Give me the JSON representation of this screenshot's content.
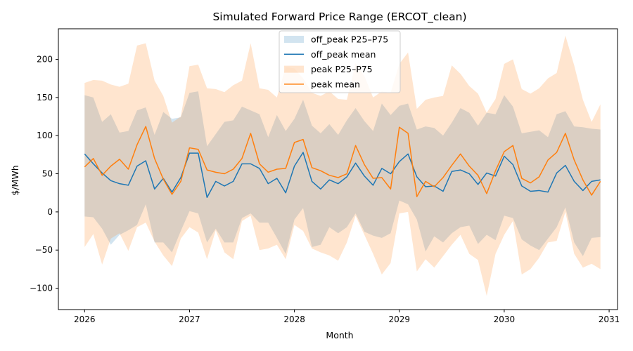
{
  "chart_data": {
    "type": "line",
    "title": "Simulated Forward Price Range (ERCOT_clean)",
    "xlabel": "Month",
    "ylabel": "$/MWh",
    "xlim": [
      2025.75,
      2031.08
    ],
    "ylim": [
      -128,
      240
    ],
    "x_ticks": [
      2026,
      2027,
      2028,
      2029,
      2030,
      2031
    ],
    "y_ticks": [
      -100,
      -50,
      0,
      50,
      100,
      150,
      200
    ],
    "grid": false,
    "legend_position": "top-center",
    "colors": {
      "off_peak_band": "#1f77b4",
      "off_peak_line": "#1f77b4",
      "peak_band": "#ff7f0e",
      "peak_line": "#ff7f0e"
    },
    "x": [
      2026.0,
      2026.083,
      2026.167,
      2026.25,
      2026.333,
      2026.417,
      2026.5,
      2026.583,
      2026.667,
      2026.75,
      2026.833,
      2026.917,
      2027.0,
      2027.083,
      2027.167,
      2027.25,
      2027.333,
      2027.417,
      2027.5,
      2027.583,
      2027.667,
      2027.75,
      2027.833,
      2027.917,
      2028.0,
      2028.083,
      2028.167,
      2028.25,
      2028.333,
      2028.417,
      2028.5,
      2028.583,
      2028.667,
      2028.75,
      2028.833,
      2028.917,
      2029.0,
      2029.083,
      2029.167,
      2029.25,
      2029.333,
      2029.417,
      2029.5,
      2029.583,
      2029.667,
      2029.75,
      2029.833,
      2029.917,
      2030.0,
      2030.083,
      2030.167,
      2030.25,
      2030.333,
      2030.417,
      2030.5,
      2030.583,
      2030.667,
      2030.75,
      2030.833,
      2030.917
    ],
    "series": [
      {
        "name": "off_peak P25–P75",
        "kind": "band",
        "low": [
          -6,
          -7,
          -22,
          -43,
          -30,
          -24,
          -17,
          10,
          -40,
          -40,
          -53,
          -25,
          1,
          -2,
          -40,
          -22,
          -40,
          -40,
          -8,
          -2,
          -14,
          -14,
          -34,
          -55,
          -10,
          5,
          -46,
          -43,
          -20,
          -28,
          -20,
          -2,
          -26,
          -31,
          -34,
          -28,
          15,
          10,
          -10,
          -52,
          -32,
          -40,
          -28,
          -20,
          -18,
          -42,
          -30,
          -37,
          -5,
          -8,
          -36,
          -44,
          -50,
          -35,
          -20,
          6,
          -40,
          -58,
          -34,
          -33
        ],
        "high": [
          153,
          150,
          118,
          128,
          104,
          106,
          133,
          137,
          101,
          131,
          122,
          124,
          156,
          158,
          86,
          102,
          118,
          120,
          138,
          133,
          128,
          98,
          127,
          106,
          122,
          147,
          113,
          103,
          115,
          101,
          120,
          136,
          119,
          106,
          142,
          127,
          139,
          142,
          108,
          112,
          110,
          100,
          117,
          136,
          130,
          113,
          130,
          128,
          153,
          138,
          103,
          105,
          107,
          98,
          128,
          132,
          112,
          111,
          109,
          108
        ]
      },
      {
        "name": "off_peak mean",
        "kind": "line",
        "values": [
          76,
          63,
          51,
          41,
          37,
          35,
          60,
          67,
          30,
          44,
          26,
          45,
          77,
          77,
          19,
          40,
          34,
          40,
          63,
          63,
          57,
          37,
          44,
          25,
          60,
          78,
          40,
          30,
          42,
          37,
          46,
          64,
          47,
          35,
          57,
          50,
          66,
          76,
          46,
          33,
          34,
          27,
          53,
          55,
          50,
          36,
          51,
          47,
          73,
          62,
          34,
          27,
          28,
          26,
          51,
          61,
          40,
          28,
          40,
          42
        ]
      },
      {
        "name": "peak P25–P75",
        "kind": "band",
        "low": [
          -46,
          -29,
          -69,
          -35,
          -28,
          -51,
          -20,
          -14,
          -39,
          -57,
          -71,
          -35,
          -20,
          -27,
          -62,
          -24,
          -53,
          -62,
          -12,
          -5,
          -50,
          -48,
          -43,
          -62,
          -17,
          -25,
          -48,
          -53,
          -57,
          -64,
          -40,
          -5,
          -30,
          -55,
          -82,
          -67,
          -2,
          0,
          -78,
          -62,
          -73,
          -58,
          -43,
          -30,
          -55,
          -63,
          -110,
          -55,
          -30,
          -12,
          -82,
          -75,
          -60,
          -40,
          -38,
          0,
          -55,
          -73,
          -68,
          -75
        ],
        "high": [
          169,
          173,
          172,
          167,
          164,
          168,
          218,
          221,
          172,
          152,
          117,
          125,
          191,
          193,
          162,
          161,
          157,
          166,
          172,
          221,
          162,
          160,
          150,
          190,
          188,
          175,
          156,
          152,
          158,
          148,
          147,
          195,
          178,
          150,
          158,
          156,
          194,
          209,
          135,
          147,
          150,
          152,
          192,
          181,
          165,
          155,
          130,
          148,
          194,
          200,
          161,
          155,
          162,
          175,
          182,
          231,
          192,
          147,
          118,
          141
        ]
      },
      {
        "name": "peak mean",
        "kind": "line",
        "values": [
          59,
          70,
          48,
          60,
          69,
          56,
          88,
          112,
          70,
          43,
          23,
          40,
          84,
          82,
          55,
          52,
          50,
          56,
          70,
          103,
          63,
          52,
          56,
          57,
          91,
          95,
          58,
          54,
          48,
          45,
          50,
          87,
          62,
          44,
          45,
          30,
          111,
          103,
          20,
          40,
          33,
          45,
          61,
          76,
          60,
          48,
          24,
          54,
          79,
          87,
          44,
          38,
          46,
          68,
          78,
          103,
          68,
          42,
          22,
          40
        ]
      }
    ]
  }
}
